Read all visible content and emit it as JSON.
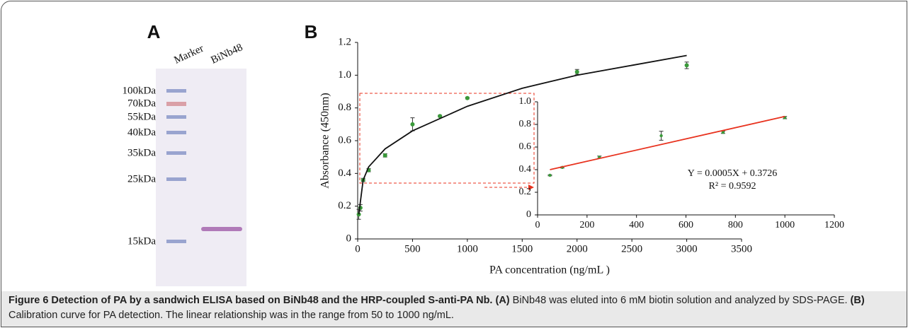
{
  "panel_a": {
    "label": "A",
    "lanes": [
      "Marker",
      "BiNb48"
    ],
    "sizes": [
      "100kDa",
      "70kDa",
      "55kDa",
      "40kDa",
      "35kDa",
      "25kDa",
      "15kDa"
    ]
  },
  "panel_b": {
    "label": "B"
  },
  "chart_data": [
    {
      "type": "scatter",
      "xlabel": "PA concentration (ng/mL )",
      "ylabel": "Absorbance (450nm)",
      "xlim": [
        0,
        3500
      ],
      "xticks": [
        0,
        500,
        1000,
        1500,
        2000,
        2500,
        3000,
        3500
      ],
      "ylim": [
        0,
        1.2
      ],
      "yticks": [
        0,
        0.2,
        0.4,
        0.6,
        0.8,
        {
          "value": 1,
          "label": "1.0"
        },
        1.2
      ],
      "series": [
        {
          "color": "#3a9a3a",
          "x": [
            10,
            25,
            50,
            100,
            250,
            500,
            750,
            1000,
            2000,
            3000
          ],
          "values": [
            0.15,
            0.19,
            0.36,
            0.42,
            0.51,
            0.7,
            0.75,
            0.86,
            1.02,
            1.06
          ],
          "errors": [
            0.03,
            0.02,
            0.01,
            0.01,
            0.01,
            0.04,
            0.005,
            0.005,
            0.015,
            0.02
          ]
        },
        {
          "type": "line",
          "color": "#111111",
          "x": [
            10,
            50,
            100,
            250,
            500,
            1000,
            1500,
            2000,
            2500,
            3000
          ],
          "values": [
            0.15,
            0.36,
            0.44,
            0.55,
            0.66,
            0.81,
            0.92,
            1.0,
            1.06,
            1.12
          ]
        }
      ]
    },
    {
      "type": "scatter",
      "xlim": [
        0,
        1200
      ],
      "xticks": [
        0,
        200,
        400,
        600,
        800,
        1000,
        1200
      ],
      "ylim": [
        0,
        1
      ],
      "yticks": [
        0,
        0.2,
        0.4,
        0.6,
        0.8,
        {
          "value": 1,
          "label": "1.0"
        }
      ],
      "annotations": [
        "Y = 0.0005X + 0.3726",
        "R² = 0.9592"
      ],
      "series": [
        {
          "color": "#3a9a3a",
          "x": [
            50,
            100,
            250,
            500,
            750,
            1000
          ],
          "values": [
            0.35,
            0.42,
            0.51,
            0.7,
            0.73,
            0.86
          ],
          "errors": [
            0.005,
            0.005,
            0.01,
            0.04,
            0.01,
            0.01
          ]
        },
        {
          "type": "line",
          "color": "#e8321e",
          "x": [
            50,
            1000
          ],
          "values": [
            0.4,
            0.87
          ]
        }
      ]
    }
  ],
  "caption": {
    "title": "Figure 6 Detection of PA by a sandwich ELISA based on BiNb48 and the HRP-coupled S-anti-PA Nb.",
    "a_label": "(A)",
    "a_text": "BiNb48 was eluted into 6 mM biotin solution and analyzed by SDS-PAGE.",
    "b_label": "(B)",
    "b_text": "Calibration curve for PA detection. The linear relationship was in the range from 50 to 1000 ng/mL."
  }
}
